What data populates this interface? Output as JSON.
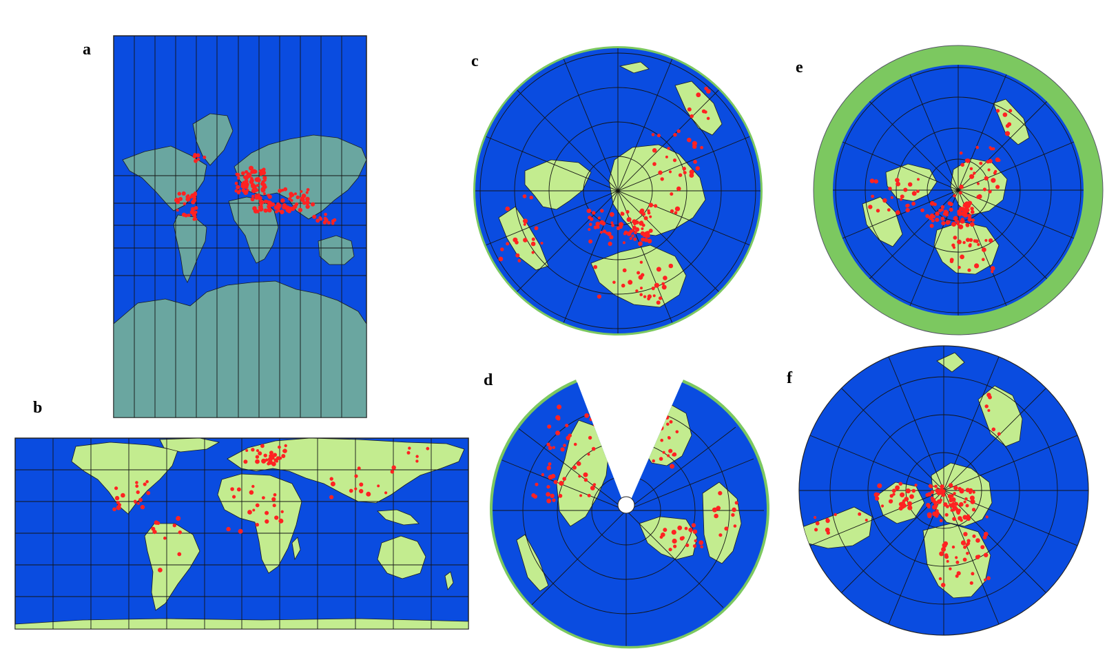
{
  "figure": {
    "panels": [
      {
        "id": "a",
        "label": "a",
        "projection": "mercator"
      },
      {
        "id": "b",
        "label": "b",
        "projection": "equirectangular"
      },
      {
        "id": "c",
        "label": "c",
        "projection": "azimuthal-oblique"
      },
      {
        "id": "d",
        "label": "d",
        "projection": "conic-interrupted"
      },
      {
        "id": "e",
        "label": "e",
        "projection": "azimuthal-oblique-with-rim"
      },
      {
        "id": "f",
        "label": "f",
        "projection": "azimuthal-oblique-zoomed"
      }
    ],
    "colors": {
      "ocean": "#0a4ce0",
      "land": "#c3ec8f",
      "land_mercator": "#6aa6a0",
      "rim": "#7cc860",
      "borders": "#1b1b1b",
      "graticule": "#141414",
      "points": "#ff2222",
      "label": "#000000"
    }
  }
}
